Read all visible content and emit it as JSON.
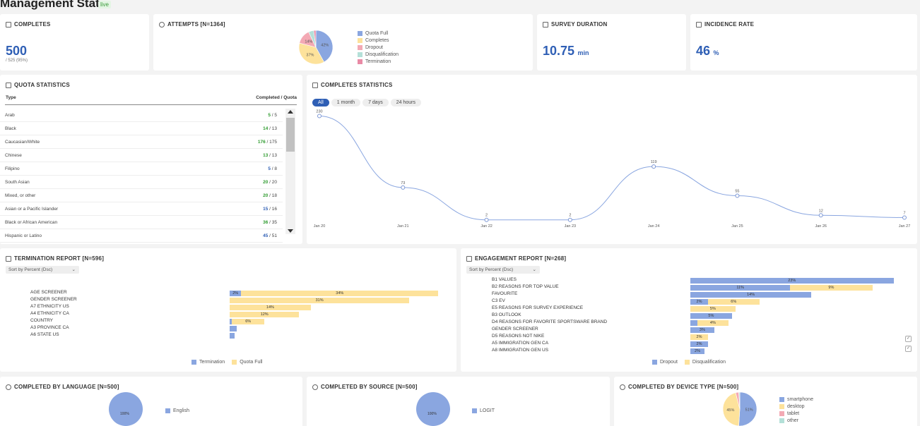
{
  "header": {
    "title": "Management Stats",
    "badge": "live"
  },
  "colors": {
    "blue": "#8aa6e0",
    "yellow": "#fde29b",
    "pink": "#f3a9b4",
    "teal": "#b4e0d8",
    "rose": "#e98aa6",
    "accent": "#2f5fb5"
  },
  "completes": {
    "title": "COMPLETES",
    "value": "500",
    "sub": "/ 525 (95%)"
  },
  "attempts": {
    "title": "ATTEMPTS [N=1364]",
    "slices": [
      {
        "label": "Quota Full",
        "value": 42,
        "text": "42%",
        "color": "#8aa6e0"
      },
      {
        "label": "Completes",
        "value": 37,
        "text": "37%",
        "color": "#fde29b"
      },
      {
        "label": "Dropout",
        "value": 14,
        "text": "14%",
        "color": "#f3a9b4"
      },
      {
        "label": "Disqualification",
        "value": 5,
        "text": "",
        "color": "#b4e0d8"
      },
      {
        "label": "Termination",
        "value": 2,
        "text": "",
        "color": "#e98aa6"
      }
    ]
  },
  "duration": {
    "title": "SURVEY DURATION",
    "value": "10.75",
    "unit": "min"
  },
  "incidence": {
    "title": "INCIDENCE RATE",
    "value": "46",
    "unit": "%"
  },
  "quota": {
    "title": "QUOTA STATISTICS",
    "col_type": "Type",
    "col_value": "Completed / Quota",
    "rows": [
      {
        "type": "Arab",
        "done": "5",
        "quota": " / 5",
        "cls": "g"
      },
      {
        "type": "Black",
        "done": "14",
        "quota": " / 13",
        "cls": "g"
      },
      {
        "type": "Caucasian/White",
        "done": "176",
        "quota": " / 175",
        "cls": "g"
      },
      {
        "type": "Chinese",
        "done": "13",
        "quota": " / 13",
        "cls": "g"
      },
      {
        "type": "Filipino",
        "done": "5",
        "quota": " / 8",
        "cls": "b"
      },
      {
        "type": "South Asian",
        "done": "20",
        "quota": " / 20",
        "cls": "g"
      },
      {
        "type": "Mixed, or other",
        "done": "20",
        "quota": " / 18",
        "cls": "g"
      },
      {
        "type": "Asian or a Pacific Islander",
        "done": "15",
        "quota": " / 16",
        "cls": "b"
      },
      {
        "type": "Black or African American",
        "done": "36",
        "quota": " / 35",
        "cls": "g"
      },
      {
        "type": "Hispanic or Latino",
        "done": "45",
        "quota": " / 51",
        "cls": "b"
      }
    ]
  },
  "completes_stats": {
    "title": "COMPLETES STATISTICS",
    "filters": [
      "All",
      "1 month",
      "7 days",
      "24 hours"
    ]
  },
  "chart_data": {
    "type": "line",
    "title": "COMPLETES STATISTICS",
    "categories": [
      "Jan 20",
      "Jan 21",
      "Jan 22",
      "Jan 23",
      "Jan 24",
      "Jan 25",
      "Jan 26",
      "Jan 27"
    ],
    "values": [
      230,
      73,
      2,
      2,
      119,
      55,
      12,
      7
    ],
    "ylim": [
      0,
      240
    ]
  },
  "termination": {
    "title": "TERMINATION REPORT [N=596]",
    "sort": "Sort by Percent (Dsc)",
    "rows": [
      {
        "label": "AGE SCREENER",
        "a": 2,
        "b": 34,
        "la": "2%",
        "lb": "34%"
      },
      {
        "label": "GENDER SCREENER",
        "a": 0,
        "b": 31,
        "la": "",
        "lb": "31%"
      },
      {
        "label": "A7 ETHNICITY US",
        "a": 0,
        "b": 14,
        "la": "",
        "lb": "14%"
      },
      {
        "label": "A4 ETHNICITY CA",
        "a": 0,
        "b": 12,
        "la": "",
        "lb": "12%"
      },
      {
        "label": "COUNTRY",
        "a": 0.4,
        "b": 5.6,
        "la": "",
        "lb": "6%"
      },
      {
        "label": "A3 PROVINCE CA",
        "a": 1.2,
        "b": 0,
        "la": "",
        "lb": ""
      },
      {
        "label": "A6 STATE US",
        "a": 0.9,
        "b": 0,
        "la": "",
        "lb": ""
      }
    ],
    "legend": [
      "Termination",
      "Quota Full"
    ]
  },
  "engagement": {
    "title": "ENGAGEMENT REPORT [N=268]",
    "sort": "Sort by Percent (Dsc)",
    "rows": [
      {
        "label": "B1 VALUES",
        "a": 23,
        "b": 0,
        "la": "23%",
        "lb": ""
      },
      {
        "label": "B2 REASONS FOR TOP VALUE",
        "a": 11.3,
        "b": 9.3,
        "la": "11%",
        "lb": "9%"
      },
      {
        "label": "FAVOURITE",
        "a": 13.7,
        "b": 0,
        "la": "14%",
        "lb": ""
      },
      {
        "label": "C3 EV",
        "a": 2,
        "b": 5.8,
        "la": "2%",
        "lb": "6%"
      },
      {
        "label": "E5 REASONS FOR SURVEY EXPERIENCE",
        "a": 0,
        "b": 5.1,
        "la": "",
        "lb": "5%"
      },
      {
        "label": "B3 OUTLOOK",
        "a": 4.7,
        "b": 0,
        "la": "5%",
        "lb": ""
      },
      {
        "label": "D4 REASONS FOR FAVORITE SPORTSWARE BRAND",
        "a": 0.8,
        "b": 3.5,
        "la": "",
        "lb": "4%"
      },
      {
        "label": "GENDER SCREENER",
        "a": 2.7,
        "b": 0,
        "la": "3%",
        "lb": ""
      },
      {
        "label": "D5 REASONS NOT NIKE",
        "a": 0,
        "b": 2,
        "la": "",
        "lb": "2%"
      },
      {
        "label": "A5 IMMIGRATION GEN CA",
        "a": 2,
        "b": 0,
        "la": "2%",
        "lb": ""
      },
      {
        "label": "A8 IMMIGRATION GEN US",
        "a": 1.6,
        "b": 0,
        "la": "2%",
        "lb": ""
      }
    ],
    "legend": [
      "Dropout",
      "Disqualification"
    ]
  },
  "language": {
    "title": "COMPLETED BY LANGUAGE [N=500]",
    "legend": "English",
    "slice": "100%"
  },
  "source": {
    "title": "COMPLETED BY SOURCE [N=500]",
    "legend": "LOGIT",
    "slice": "100%"
  },
  "device": {
    "title": "COMPLETED BY DEVICE TYPE [N=500]",
    "slices": [
      {
        "label": "smartphone",
        "value": 51,
        "text": "51%",
        "color": "#8aa6e0"
      },
      {
        "label": "desktop",
        "value": 45,
        "text": "45%",
        "color": "#fde29b"
      },
      {
        "label": "tablet",
        "value": 3,
        "text": "",
        "color": "#f3a9b4"
      },
      {
        "label": "other",
        "value": 1,
        "text": "",
        "color": "#b4e0d8"
      }
    ]
  }
}
